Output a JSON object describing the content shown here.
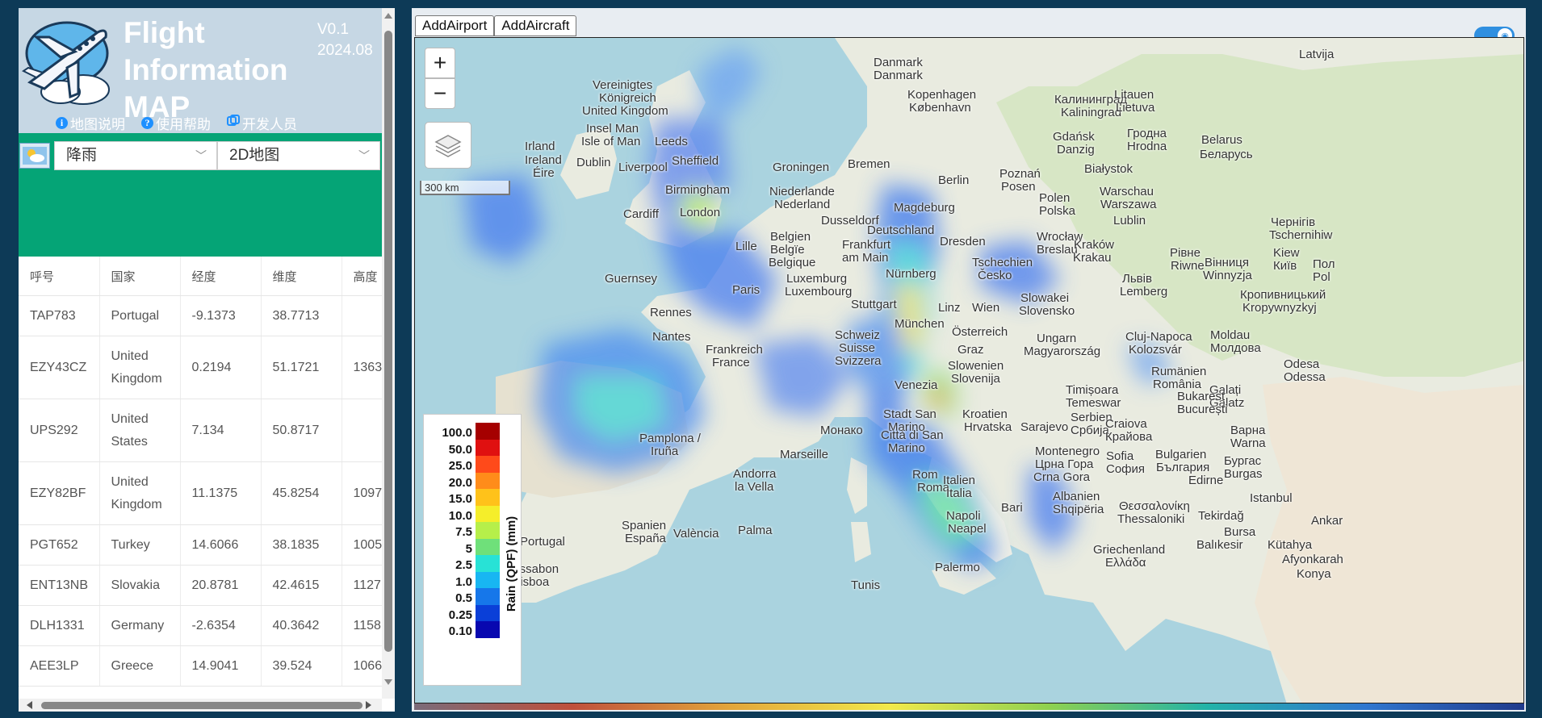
{
  "app": {
    "title": "Flight Information MAP",
    "version": "V0.1",
    "date": "2024.08",
    "links": [
      {
        "label": "地图说明",
        "icon": "info-icon"
      },
      {
        "label": "使用帮助",
        "icon": "help-icon"
      },
      {
        "label": "开发人员",
        "icon": "developer-icon"
      }
    ]
  },
  "controls": {
    "weather_icon": "weather-icon",
    "layer_select": "降雨",
    "map_mode_select": "2D地图"
  },
  "table": {
    "headers": [
      "呼号",
      "国家",
      "经度",
      "维度",
      "高度"
    ],
    "rows": [
      [
        "TAP783",
        "Portugal",
        "-9.1373",
        "38.7713",
        ""
      ],
      [
        "EZY43CZ",
        "United Kingdom",
        "0.2194",
        "51.1721",
        "1363"
      ],
      [
        "UPS292",
        "United States",
        "7.134",
        "50.8717",
        ""
      ],
      [
        "EZY82BF",
        "United Kingdom",
        "11.1375",
        "45.8254",
        "1097"
      ],
      [
        "PGT652",
        "Turkey",
        "14.6066",
        "38.1835",
        "1005"
      ],
      [
        "ENT13NB",
        "Slovakia",
        "20.8781",
        "42.4615",
        "1127"
      ],
      [
        "DLH1331",
        "Germany",
        "-2.6354",
        "40.3642",
        "1158"
      ],
      [
        "AEE3LP",
        "Greece",
        "14.9041",
        "39.524",
        "1066"
      ]
    ]
  },
  "toolbar": {
    "add_airport": "AddAirport",
    "add_aircraft": "AddAircraft"
  },
  "map": {
    "zoom_in": "+",
    "zoom_out": "−",
    "scale": "300 km",
    "legend": {
      "title": "Rain (QPF) (mm)",
      "items": [
        {
          "label": "100.0",
          "color": "#a50000"
        },
        {
          "label": "50.0",
          "color": "#e01010"
        },
        {
          "label": "25.0",
          "color": "#ff4a1a"
        },
        {
          "label": "20.0",
          "color": "#ff8c1a"
        },
        {
          "label": "15.0",
          "color": "#ffc21a"
        },
        {
          "label": "10.0",
          "color": "#f5ee2a"
        },
        {
          "label": "7.5",
          "color": "#b6ef4a"
        },
        {
          "label": "5",
          "color": "#6fe07a"
        },
        {
          "label": "2.5",
          "color": "#28e2d6"
        },
        {
          "label": "1.0",
          "color": "#18b6f2"
        },
        {
          "label": "0.5",
          "color": "#1677ea"
        },
        {
          "label": "0.25",
          "color": "#0a3fd8"
        },
        {
          "label": "0.10",
          "color": "#0808b0"
        }
      ]
    },
    "places": [
      [
        "Latvija",
        1095,
        12
      ],
      [
        "Danmark",
        568,
        22
      ],
      [
        "Danmark",
        568,
        38
      ],
      [
        "Vereinigtes",
        220,
        50
      ],
      [
        "Königreich",
        228,
        66
      ],
      [
        "United Kingdom",
        207,
        82
      ],
      [
        "Kopenhagen",
        610,
        62
      ],
      [
        "København",
        612,
        78
      ],
      [
        "Калининград",
        792,
        68
      ],
      [
        "Kaliningrad",
        800,
        84
      ],
      [
        "Litauen",
        866,
        62
      ],
      [
        "Lietuva",
        868,
        78
      ],
      [
        "Insel Man",
        212,
        104
      ],
      [
        "Isle of Man",
        206,
        120
      ],
      [
        "Leeds",
        297,
        120
      ],
      [
        "Irland",
        136,
        126
      ],
      [
        "Ireland",
        136,
        143
      ],
      [
        "Éire",
        146,
        159
      ],
      [
        "Dublin",
        200,
        146
      ],
      [
        "Sheffield",
        318,
        144
      ],
      [
        "Liverpool",
        252,
        152
      ],
      [
        "Gdańsk",
        790,
        114
      ],
      [
        "Danzig",
        795,
        130
      ],
      [
        "Гродна",
        882,
        110
      ],
      [
        "Hrodna",
        882,
        126
      ],
      [
        "Belarus",
        974,
        118
      ],
      [
        "Беларусь",
        972,
        136
      ],
      [
        "Birmingham",
        310,
        180
      ],
      [
        "Groningen",
        443,
        152
      ],
      [
        "Bremen",
        536,
        148
      ],
      [
        "Berlin",
        648,
        168
      ],
      [
        "Poznań",
        724,
        160
      ],
      [
        "Posen",
        726,
        176
      ],
      [
        "Białystok",
        829,
        154
      ],
      [
        "Warschau",
        848,
        182
      ],
      [
        "Warszawa",
        849,
        198
      ],
      [
        "Cardiff",
        258,
        210
      ],
      [
        "London",
        328,
        208
      ],
      [
        "Niederlande",
        439,
        182
      ],
      [
        "Nederland",
        445,
        198
      ],
      [
        "Polen",
        773,
        190
      ],
      [
        "Polska",
        773,
        206
      ],
      [
        "Magdeburg",
        593,
        202
      ],
      [
        "Dusseldorf",
        503,
        218
      ],
      [
        "Deutschland",
        560,
        230
      ],
      [
        "Lublin",
        865,
        218
      ],
      [
        "Belgien",
        440,
        238
      ],
      [
        "Belgïe",
        440,
        254
      ],
      [
        "Belgique",
        438,
        270
      ],
      [
        "Frankfurt",
        529,
        248
      ],
      [
        "am Main",
        529,
        264
      ],
      [
        "Dresden",
        650,
        244
      ],
      [
        "Wrocław",
        770,
        238
      ],
      [
        "Breslau",
        770,
        254
      ],
      [
        "Kraków",
        816,
        248
      ],
      [
        "Krakau",
        815,
        264
      ],
      [
        "Lille",
        397,
        250
      ],
      [
        "Guernsey",
        235,
        290
      ],
      [
        "Luxemburg",
        460,
        290
      ],
      [
        "Luxembourg",
        458,
        306
      ],
      [
        "Nürnberg",
        583,
        284
      ],
      [
        "Tschechien",
        690,
        270
      ],
      [
        "Česko",
        697,
        286
      ],
      [
        "Рівне",
        935,
        258
      ],
      [
        "Riwne",
        936,
        274
      ],
      [
        "Paris",
        393,
        304
      ],
      [
        "Stuttgart",
        540,
        322
      ],
      [
        "Львів",
        876,
        290
      ],
      [
        "Lemberg",
        873,
        306
      ],
      [
        "Rennes",
        291,
        332
      ],
      [
        "Linz",
        648,
        326
      ],
      [
        "Wien",
        690,
        326
      ],
      [
        "Slowakei",
        750,
        314
      ],
      [
        "Slovensko",
        748,
        330
      ],
      [
        "München",
        594,
        346
      ],
      [
        "Moldau",
        985,
        360
      ],
      [
        "Молдова",
        985,
        376
      ],
      [
        "Österreich",
        665,
        356
      ],
      [
        "Nantes",
        294,
        362
      ],
      [
        "Schweiz",
        520,
        360
      ],
      [
        "Suisse",
        525,
        376
      ],
      [
        "Svizzera",
        520,
        392
      ],
      [
        "Ungarn",
        770,
        364
      ],
      [
        "Magyarország",
        754,
        380
      ],
      [
        "Graz",
        672,
        378
      ],
      [
        "Frankreich",
        360,
        378
      ],
      [
        "France",
        368,
        394
      ],
      [
        "Cluj-Napoca",
        880,
        362
      ],
      [
        "Kolozsvár",
        884,
        378
      ],
      [
        "Slowenien",
        660,
        398
      ],
      [
        "Slovenija",
        664,
        414
      ],
      [
        "Venezia",
        594,
        422
      ],
      [
        "Rumänien",
        912,
        405
      ],
      [
        "România",
        914,
        421
      ],
      [
        "Odesa",
        1076,
        396
      ],
      [
        "Odessa",
        1076,
        412
      ],
      [
        "Timișoara",
        806,
        428
      ],
      [
        "Temeswar",
        806,
        444
      ],
      [
        "Galați",
        984,
        428
      ],
      [
        "Galatz",
        984,
        444
      ],
      [
        "Bukarest",
        944,
        436
      ],
      [
        "București",
        944,
        452
      ],
      [
        "Serbien",
        812,
        462
      ],
      [
        "Србија",
        812,
        478
      ],
      [
        "Stadt San",
        580,
        458
      ],
      [
        "Marino",
        586,
        474
      ],
      [
        "Città di San",
        577,
        484
      ],
      [
        "Marino",
        586,
        500
      ],
      [
        "Kroatien",
        678,
        458
      ],
      [
        "Hrvatska",
        680,
        474
      ],
      [
        "Sarajevo",
        750,
        474
      ],
      [
        "Монако",
        502,
        478
      ],
      [
        "Pamplona /",
        278,
        488
      ],
      [
        "Iruña",
        292,
        504
      ],
      [
        "Marseille",
        452,
        508
      ],
      [
        "Craiova",
        855,
        470
      ],
      [
        "Крайова",
        855,
        486
      ],
      [
        "Варна",
        1010,
        478
      ],
      [
        "Warna",
        1010,
        494
      ],
      [
        "Montenegro",
        768,
        504
      ],
      [
        "Црна Гора",
        768,
        520
      ],
      [
        "Crna Gora",
        766,
        536
      ],
      [
        "Sofia",
        856,
        510
      ],
      [
        "София",
        856,
        526
      ],
      [
        "Bulgarien",
        917,
        508
      ],
      [
        "България",
        918,
        524
      ],
      [
        "Бургас",
        1002,
        516
      ],
      [
        "Burgas",
        1002,
        532
      ],
      [
        "Edirne",
        958,
        540
      ],
      [
        "Rom",
        616,
        533
      ],
      [
        "Roma",
        622,
        549
      ],
      [
        "Italien",
        654,
        540
      ],
      [
        "Italia",
        658,
        556
      ],
      [
        "Andorra",
        394,
        532
      ],
      [
        "la Vella",
        396,
        548
      ],
      [
        "Albanien",
        790,
        560
      ],
      [
        "Shqipëria",
        790,
        576
      ],
      [
        "Istanbul",
        1034,
        562
      ],
      [
        "Bari",
        726,
        574
      ],
      [
        "Napoli",
        658,
        584
      ],
      [
        "Neapel",
        660,
        600
      ],
      [
        "Θεσσαλονίκη",
        872,
        572
      ],
      [
        "Thessaloniki",
        870,
        588
      ],
      [
        "Spanien",
        256,
        596
      ],
      [
        "España",
        260,
        612
      ],
      [
        "Tekirdağ",
        970,
        584
      ],
      [
        "Portugal",
        130,
        616
      ],
      [
        "València",
        320,
        606
      ],
      [
        "Palma",
        400,
        602
      ],
      [
        "Bursa",
        1002,
        604
      ],
      [
        "Balıkesir",
        968,
        620
      ],
      [
        "Kütahya",
        1056,
        620
      ],
      [
        "Griechenland",
        840,
        626
      ],
      [
        "Ελλάδα",
        855,
        642
      ],
      [
        "Lissabon",
        118,
        650
      ],
      [
        "Lisboa",
        122,
        666
      ],
      [
        "Palermo",
        644,
        648
      ],
      [
        "Afyonkarah",
        1074,
        638
      ],
      [
        "Konya",
        1092,
        656
      ],
      [
        "Tunis",
        540,
        670
      ],
      [
        "Ankar",
        1110,
        590
      ],
      [
        "Kiew",
        1063,
        258
      ],
      [
        "Київ",
        1063,
        274
      ],
      [
        "Вінниця",
        978,
        270
      ],
      [
        "Winnyzja",
        976,
        286
      ],
      [
        "Кропивницький",
        1022,
        310
      ],
      [
        "Kropywnyzkyj",
        1025,
        326
      ],
      [
        "Чернігів",
        1060,
        220
      ],
      [
        "Tschernihiw",
        1058,
        236
      ],
      [
        "Пол",
        1112,
        272
      ],
      [
        "Pol",
        1112,
        288
      ]
    ]
  }
}
